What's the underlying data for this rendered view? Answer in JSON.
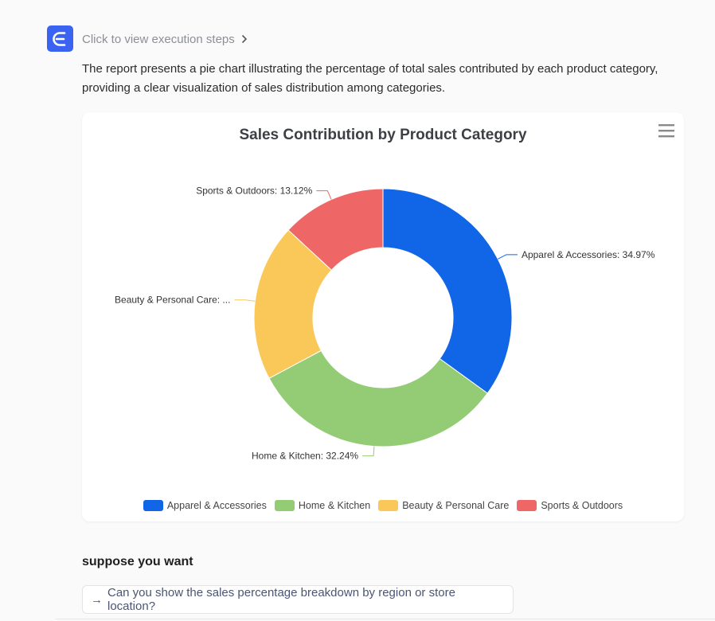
{
  "header": {
    "logo_icon": "letter-e-icon",
    "exec_link_label": "Click to view execution steps"
  },
  "summary_text": "The report presents a pie chart illustrating the percentage of total sales contributed by each product category, providing a clear visualization of sales distribution among categories.",
  "chart_data": {
    "type": "pie",
    "donut": true,
    "title": "Sales Contribution by Product Category",
    "categories": [
      "Apparel & Accessories",
      "Home & Kitchen",
      "Beauty & Personal Care",
      "Sports & Outdoors"
    ],
    "values": [
      34.97,
      32.24,
      19.67,
      13.12
    ],
    "unit": "%",
    "colors": [
      "#1166e8",
      "#93cc74",
      "#fac858",
      "#ee6666"
    ],
    "data_labels": [
      "Apparel & Accessories: 34.97%",
      "Home & Kitchen: 32.24%",
      "Beauty & Personal Care: ...",
      "Sports & Outdoors: 13.12%"
    ],
    "legend": {
      "position": "bottom",
      "items": [
        "Apparel & Accessories",
        "Home & Kitchen",
        "Beauty & Personal Care",
        "Sports & Outdoors"
      ]
    },
    "menu_icon": "hamburger-menu-icon"
  },
  "suggestions": {
    "heading": "suppose you want",
    "items": [
      {
        "arrow": "→",
        "label": "Can you show the sales percentage breakdown by region or store location?"
      }
    ]
  }
}
